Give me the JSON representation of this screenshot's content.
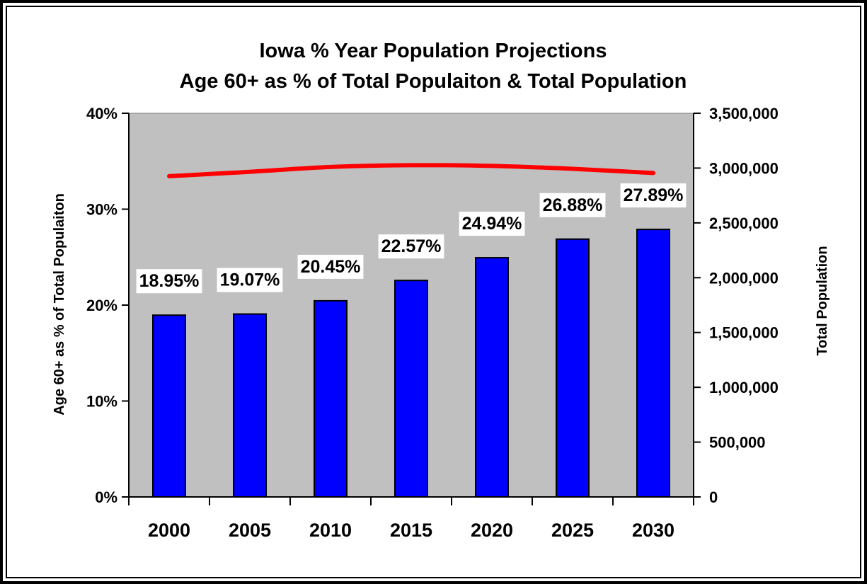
{
  "chart_data": {
    "type": "bar",
    "title": "Iowa % Year Population Projections",
    "subtitle": "Age 60+ as % of Total Populaiton & Total Population",
    "categories": [
      "2000",
      "2005",
      "2010",
      "2015",
      "2020",
      "2025",
      "2030"
    ],
    "series": [
      {
        "name": "Age 60+ as % of Total Populaiton",
        "type": "bar",
        "axis": "left",
        "color": "#0000ff",
        "values": [
          18.95,
          19.07,
          20.45,
          22.57,
          24.94,
          26.88,
          27.89
        ],
        "labels": [
          "18.95%",
          "19.07%",
          "20.45%",
          "22.57%",
          "24.94%",
          "26.88%",
          "27.89%"
        ]
      },
      {
        "name": "Total Population",
        "type": "line",
        "axis": "right",
        "color": "#ff0000",
        "values": [
          2926000,
          2966000,
          3010000,
          3026000,
          3020000,
          2993000,
          2955000
        ]
      }
    ],
    "ylabel": "Age 60+ as % of Total Populaiton",
    "y2label": "Total Population",
    "ylim": [
      0,
      40
    ],
    "y2lim": [
      0,
      3500000
    ],
    "yticks": [
      "0%",
      "10%",
      "20%",
      "30%",
      "40%"
    ],
    "y2ticks": [
      "0",
      "500,000",
      "1,000,000",
      "1,500,000",
      "2,000,000",
      "2,500,000",
      "3,000,000",
      "3,500,000"
    ],
    "plot_background": "#c0c0c0",
    "grid": false,
    "legend": "none"
  }
}
